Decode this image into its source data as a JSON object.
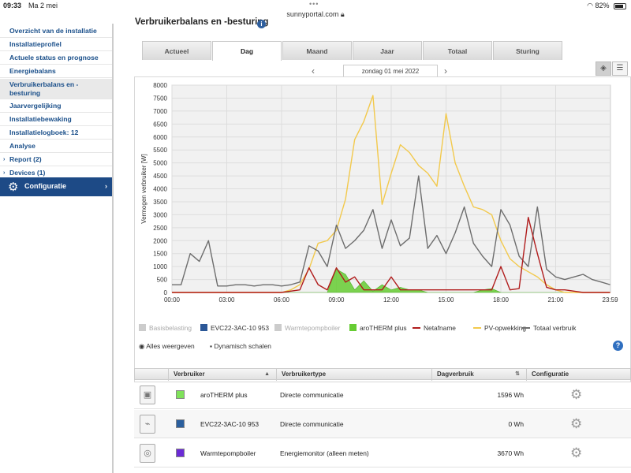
{
  "statusbar": {
    "time": "09:33",
    "date": "Ma 2 mei",
    "url": "sunnyportal.com",
    "battery": "82%",
    "battery_level": 0.82
  },
  "sidebar": {
    "items": [
      {
        "label": "Overzicht van de installatie",
        "active": false,
        "arrow": false
      },
      {
        "label": "Installatieprofiel",
        "active": false,
        "arrow": false
      },
      {
        "label": "Actuele status en prognose",
        "active": false,
        "arrow": false
      },
      {
        "label": "Energiebalans",
        "active": false,
        "arrow": false
      },
      {
        "label": "Verbruikerbalans en - besturing",
        "active": true,
        "arrow": false
      },
      {
        "label": "Jaarvergelijking",
        "active": false,
        "arrow": false
      },
      {
        "label": "Installatiebewaking",
        "active": false,
        "arrow": false
      },
      {
        "label": "Installatielogboek: 12",
        "active": false,
        "arrow": false
      },
      {
        "label": "Analyse",
        "active": false,
        "arrow": false
      },
      {
        "label": "Report (2)",
        "active": false,
        "arrow": true
      },
      {
        "label": "Devices (1)",
        "active": false,
        "arrow": true
      }
    ],
    "config_label": "Configuratie"
  },
  "main": {
    "title": "Verbruikerbalans en -besturing",
    "tabs": [
      "Actueel",
      "Dag",
      "Maand",
      "Jaar",
      "Totaal",
      "Sturing"
    ],
    "active_tab": "Dag",
    "date": "zondag 01 mei 2022"
  },
  "legend": {
    "items": [
      {
        "label": "Basisbelasting",
        "color": "#cccccc",
        "kind": "box",
        "dim": true
      },
      {
        "label": "EVC22-3AC-10 953",
        "color": "#2b5797",
        "kind": "box",
        "dim": false
      },
      {
        "label": "Warmtepompboiler",
        "color": "#cccccc",
        "kind": "box",
        "dim": true
      },
      {
        "label": "aroTHERM plus",
        "color": "#66cc33",
        "kind": "box",
        "dim": false
      },
      {
        "label": "Netafname",
        "color": "#b01c1c",
        "kind": "line",
        "dim": false
      },
      {
        "label": "PV-opwekking",
        "color": "#f2c94c",
        "kind": "line",
        "dim": false
      },
      {
        "label": "Totaal verbruik",
        "color": "#6d6d6d",
        "kind": "line",
        "dim": false
      }
    ],
    "show_all": "Alles weergeven",
    "dynamic_scale": "Dynamisch schalen"
  },
  "table": {
    "headers": [
      "Verbruiker",
      "Verbruikertype",
      "Dagverbruik",
      "Configuratie"
    ],
    "rows": [
      {
        "icon": "heatpump-icon",
        "color": "#7fe25a",
        "name": "aroTHERM plus",
        "type": "Directe communicatie",
        "value": "1596 Wh"
      },
      {
        "icon": "ev-charger-icon",
        "color": "#2b5f9e",
        "name": "EVC22-3AC-10 953",
        "type": "Directe communicatie",
        "value": "0 Wh"
      },
      {
        "icon": "boiler-icon",
        "color": "#6b2bd6",
        "name": "Warmtepompboiler",
        "type": "Energiemonitor (alleen meten)",
        "value": "3670 Wh"
      }
    ]
  },
  "chart_data": {
    "type": "line",
    "ylabel": "Vermogen verbruiker [W]",
    "ylim": [
      0,
      8000
    ],
    "y_ticks": [
      0,
      500,
      1000,
      1500,
      2000,
      2500,
      3000,
      3500,
      4000,
      4500,
      5000,
      5500,
      6000,
      6500,
      7000,
      7500,
      8000
    ],
    "xlim_hours": [
      0,
      24
    ],
    "x_tick_labels": [
      "00:00",
      "03:00",
      "06:00",
      "09:00",
      "12:00",
      "15:00",
      "18:00",
      "21:00",
      "23:59"
    ],
    "grid": true,
    "x_hours": [
      0,
      0.5,
      1,
      1.5,
      2,
      2.5,
      3,
      3.5,
      4,
      4.5,
      5,
      5.5,
      6,
      6.5,
      7,
      7.5,
      8,
      8.5,
      9,
      9.5,
      10,
      10.5,
      11,
      11.5,
      12,
      12.5,
      13,
      13.5,
      14,
      14.5,
      15,
      15.5,
      16,
      16.5,
      17,
      17.5,
      18,
      18.5,
      19,
      19.5,
      20,
      20.5,
      21,
      21.5,
      22,
      22.5,
      23,
      23.5,
      23.98
    ],
    "series": [
      {
        "name": "PV-opwekking",
        "color": "#f2c94c",
        "values": [
          0,
          0,
          0,
          0,
          0,
          0,
          0,
          0,
          0,
          0,
          0,
          0,
          0,
          100,
          300,
          900,
          1900,
          2000,
          2400,
          3600,
          5900,
          6600,
          7600,
          3400,
          4600,
          5700,
          5400,
          4900,
          4600,
          4100,
          6900,
          5000,
          4100,
          3300,
          3200,
          3000,
          2000,
          1300,
          1000,
          800,
          600,
          300,
          100,
          0,
          0,
          0,
          0,
          0,
          0
        ]
      },
      {
        "name": "Totaal verbruik",
        "color": "#6d6d6d",
        "values": [
          300,
          300,
          1500,
          1200,
          2000,
          250,
          250,
          300,
          300,
          250,
          300,
          300,
          250,
          300,
          400,
          1800,
          1600,
          1000,
          2600,
          1700,
          2000,
          2400,
          3200,
          1700,
          2800,
          1800,
          2100,
          4500,
          1700,
          2200,
          1500,
          2300,
          3300,
          1900,
          1400,
          1000,
          3200,
          2600,
          1400,
          1000,
          3300,
          900,
          600,
          500,
          600,
          700,
          500,
          400,
          300
        ]
      },
      {
        "name": "Netafname",
        "color": "#b01c1c",
        "values": [
          0,
          0,
          0,
          0,
          0,
          0,
          0,
          0,
          0,
          0,
          0,
          0,
          0,
          50,
          100,
          950,
          300,
          100,
          950,
          400,
          600,
          100,
          100,
          100,
          600,
          100,
          100,
          100,
          100,
          100,
          100,
          100,
          100,
          100,
          100,
          100,
          1000,
          100,
          150,
          2900,
          1500,
          200,
          100,
          100,
          50,
          0,
          0,
          0,
          0
        ]
      },
      {
        "name": "aroTHERM plus",
        "color": "#66cc33",
        "values": [
          0,
          0,
          0,
          0,
          0,
          0,
          0,
          0,
          0,
          0,
          0,
          0,
          0,
          0,
          0,
          0,
          0,
          0,
          900,
          700,
          100,
          450,
          50,
          300,
          100,
          200,
          100,
          100,
          0,
          0,
          0,
          0,
          0,
          0,
          100,
          150,
          0,
          0,
          0,
          0,
          0,
          0,
          0,
          0,
          0,
          0,
          0,
          0,
          0
        ]
      },
      {
        "name": "EVC22-3AC-10 953",
        "color": "#2b5797",
        "values": [
          0,
          0,
          0,
          0,
          0,
          0,
          0,
          0,
          0,
          0,
          0,
          0,
          0,
          0,
          0,
          0,
          0,
          0,
          0,
          0,
          0,
          0,
          0,
          0,
          0,
          0,
          0,
          0,
          0,
          0,
          0,
          0,
          0,
          0,
          0,
          0,
          0,
          0,
          0,
          0,
          0,
          0,
          0,
          0,
          0,
          0,
          0,
          0,
          0
        ]
      }
    ]
  }
}
